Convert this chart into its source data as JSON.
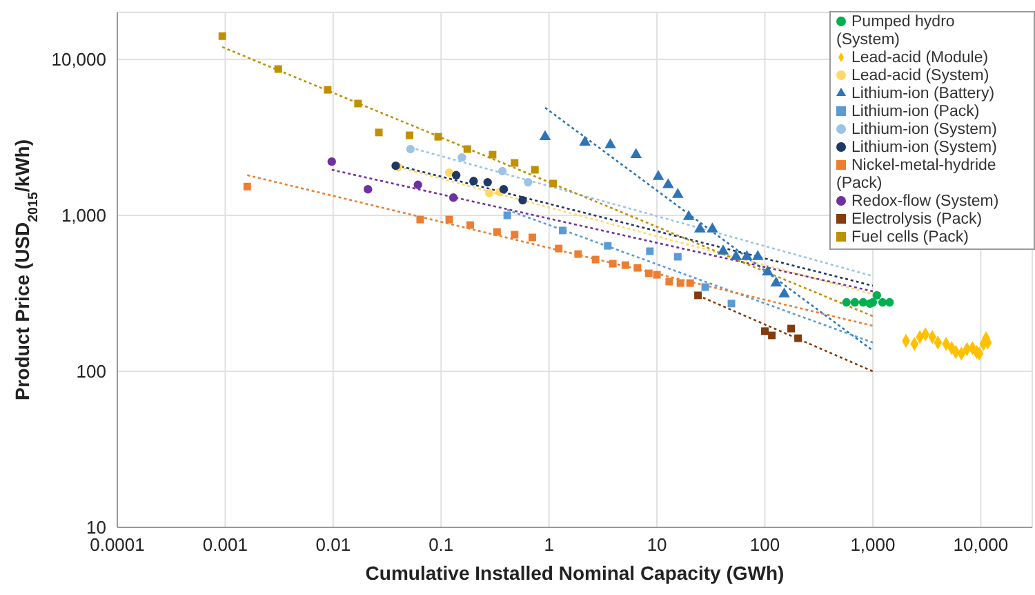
{
  "chart_data": {
    "type": "scatter",
    "xlabel": "Cumulative Installed Nominal Capacity (GWh)",
    "ylabel": "Product Price (USD$_{2015}$/kWh)",
    "log": "xy",
    "grid": true,
    "legend": "top right",
    "xlim": [
      0.0001,
      30000
    ],
    "xticks": [
      0.0001,
      0.001,
      0.01,
      0.1,
      1,
      10,
      100,
      {
        "value": 1000,
        "label": "1,000"
      },
      {
        "value": 10000,
        "label": "10,000"
      }
    ],
    "ylim": [
      10,
      20000
    ],
    "yticks": [
      10,
      100,
      {
        "value": 1000,
        "label": "1,000"
      },
      {
        "value": 10000,
        "label": "10,000"
      }
    ],
    "series": [
      {
        "name": "Pumped hydro (System)",
        "marker": "circle",
        "color": "#00b050",
        "x": [
          570,
          681,
          813,
          943,
          1000,
          1090,
          1230,
          1430
        ],
        "values": [
          277,
          277,
          277,
          272,
          277,
          307,
          277,
          277
        ]
      },
      {
        "name": "Lead-acid (Module)",
        "marker": "diamond",
        "color": "#ffc000",
        "x": [
          2030,
          2430,
          2730,
          3070,
          3560,
          4010,
          4780,
          5380,
          5880,
          6620,
          7450,
          8380,
          9160,
          9710,
          10600,
          11200,
          11600
        ],
        "values": [
          157,
          150,
          166,
          173,
          166,
          153,
          150,
          141,
          133,
          130,
          139,
          141,
          133,
          130,
          150,
          163,
          153
        ]
      },
      {
        "name": "Lead-acid (System)",
        "marker": "circle",
        "color": "#ffd966",
        "x": [
          0.04,
          0.119,
          0.28,
          0.35
        ],
        "values": [
          2040,
          1880,
          1390,
          1410
        ]
      },
      {
        "name": "Lithium-ion (Battery)",
        "marker": "triangle",
        "color": "#2e75b6",
        "x": [
          0.92,
          2.15,
          3.7,
          6.4,
          10.3,
          12.7,
          15.6,
          19.7,
          25,
          32.6,
          41,
          54,
          68,
          86,
          106,
          127,
          151
        ],
        "values": [
          3190,
          2940,
          2830,
          2450,
          1770,
          1570,
          1360,
          980,
          816,
          816,
          589,
          543,
          543,
          543,
          433,
          368,
          313
        ]
      },
      {
        "name": "Lithium-ion (Pack)",
        "marker": "square",
        "color": "#5b9bd5",
        "x": [
          0.41,
          1.34,
          3.5,
          8.6,
          15.6,
          28,
          49
        ],
        "values": [
          1000,
          800,
          638,
          589,
          543,
          347,
          272
        ]
      },
      {
        "name": "Lithium-ion (System)",
        "marker": "circle",
        "color": "#9dc3e6",
        "x": [
          0.052,
          0.156,
          0.37,
          0.64
        ],
        "values": [
          2660,
          2350,
          1920,
          1630
        ]
      },
      {
        "name": "Lithium-ion (System)",
        "marker": "circle",
        "color": "#1f3864",
        "x": [
          0.038,
          0.138,
          0.2,
          0.27,
          0.38,
          0.57
        ],
        "values": [
          2080,
          1810,
          1660,
          1630,
          1470,
          1250
        ]
      },
      {
        "name": "Nickel-metal-hydride (Pack)",
        "marker": "square",
        "color": "#ed7d31",
        "x": [
          0.0016,
          0.064,
          0.119,
          0.186,
          0.33,
          0.48,
          0.7,
          1.23,
          1.86,
          2.7,
          3.9,
          5.1,
          6.6,
          8.4,
          10,
          13,
          16.5,
          20.3
        ],
        "values": [
          1530,
          940,
          940,
          867,
          783,
          752,
          722,
          613,
          565,
          521,
          490,
          480,
          461,
          425,
          416,
          376,
          368,
          368
        ]
      },
      {
        "name": "Redox-flow (System)",
        "marker": "circle",
        "color": "#7030a0",
        "x": [
          0.0097,
          0.021,
          0.061,
          0.13
        ],
        "values": [
          2210,
          1470,
          1570,
          1300
        ]
      },
      {
        "name": "Electrolysis (Pack)",
        "marker": "square",
        "color": "#843c0c",
        "x": [
          24,
          100,
          116,
          175,
          203
        ],
        "values": [
          307,
          181,
          170,
          188,
          163
        ]
      },
      {
        "name": "Fuel cells (Pack)",
        "marker": "square",
        "color": "#bf9000",
        "x": [
          0.00094,
          0.0031,
          0.0089,
          0.017,
          0.0265,
          0.051,
          0.094,
          0.175,
          0.3,
          0.48,
          0.74,
          1.09
        ],
        "values": [
          14100,
          8670,
          6380,
          5210,
          3400,
          3260,
          3190,
          2660,
          2450,
          2170,
          1960,
          1600
        ]
      },
      {
        "type": "line",
        "line_style": "dotted",
        "marker": "none",
        "color": "#ffd966",
        "x": [
          0.04,
          1000
        ],
        "values": [
          2040,
          313
        ]
      },
      {
        "type": "line",
        "line_style": "dotted",
        "marker": "none",
        "color": "#2e75b6",
        "x": [
          0.92,
          1000
        ],
        "values": [
          4900,
          136
        ]
      },
      {
        "type": "line",
        "line_style": "dotted",
        "marker": "none",
        "color": "#5b9bd5",
        "x": [
          0.41,
          1000
        ],
        "values": [
          1085,
          153
        ]
      },
      {
        "type": "line",
        "line_style": "dotted",
        "marker": "none",
        "color": "#9dc3e6",
        "x": [
          0.052,
          1000
        ],
        "values": [
          2720,
          408
        ]
      },
      {
        "type": "line",
        "line_style": "dotted",
        "marker": "none",
        "color": "#1f3864",
        "x": [
          0.038,
          1000
        ],
        "values": [
          2100,
          354
        ]
      },
      {
        "type": "line",
        "line_style": "dotted",
        "marker": "none",
        "color": "#ed7d31",
        "x": [
          0.0016,
          1000
        ],
        "values": [
          1810,
          196
        ]
      },
      {
        "type": "line",
        "line_style": "dotted",
        "marker": "none",
        "color": "#7030a0",
        "x": [
          0.0097,
          1000
        ],
        "values": [
          1960,
          326
        ]
      },
      {
        "type": "line",
        "line_style": "dotted",
        "marker": "none",
        "color": "#843c0c",
        "x": [
          24,
          1000
        ],
        "values": [
          307,
          100
        ]
      },
      {
        "type": "line",
        "line_style": "dotted",
        "marker": "none",
        "color": "#bf9000",
        "x": [
          0.00094,
          1000
        ],
        "values": [
          12000,
          226
        ]
      }
    ]
  }
}
